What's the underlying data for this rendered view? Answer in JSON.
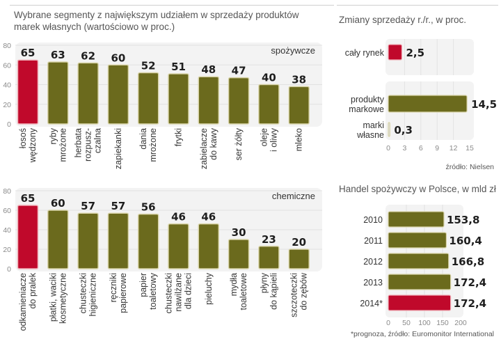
{
  "colors": {
    "highlight": "#c0092b",
    "bar": "#6b6a1d",
    "bar_border": "#d8d3a8",
    "panel": "#f3f3f3",
    "grid": "#e2e2e2"
  },
  "chart_data": [
    {
      "id": "food",
      "type": "bar",
      "title": "Wybrane segmenty z największym udziałem w sprzedaży produktów marek własnych (wartościowo w proc.)",
      "segment_label": "spożywcze",
      "categories": [
        "łosoś wędzony",
        "ryby mrożone",
        "herbata rozpuszczalna",
        "zapiekanki",
        "dania mrożone",
        "frytki",
        "zabielacze do kawy",
        "ser żółty",
        "oleje i oliwy",
        "mleko"
      ],
      "category_lines": [
        [
          "łosoś",
          "wędzony"
        ],
        [
          "ryby",
          "mrożone"
        ],
        [
          "herbata",
          "rozpusz-",
          "czalna"
        ],
        [
          "zapiekanki"
        ],
        [
          "dania",
          "mrożone"
        ],
        [
          "frytki"
        ],
        [
          "zabielacze",
          "do kawy"
        ],
        [
          "ser żółty"
        ],
        [
          "oleje",
          "i oliwy"
        ],
        [
          "mleko"
        ]
      ],
      "values": [
        65,
        63,
        62,
        60,
        52,
        51,
        48,
        47,
        40,
        38
      ],
      "value_labels": [
        "65",
        "63",
        "62",
        "60",
        "52",
        "51",
        "48",
        "47",
        "40",
        "38"
      ],
      "highlight_index": 0,
      "ylim": [
        0,
        80
      ],
      "yticks": [
        0,
        20,
        40,
        60,
        80
      ],
      "grid": true
    },
    {
      "id": "chem",
      "type": "bar",
      "segment_label": "chemiczne",
      "categories": [
        "odkamieniacze do pralek",
        "płatki, waciki kosmetyczne",
        "chusteczki higieniczne",
        "ręczniki papierowe",
        "papier toaletowy",
        "chusteczki nawilżane dla dzieci",
        "pieluchy",
        "mydła toaletowe",
        "płyny do kąpieli",
        "szczoteczki do zębów"
      ],
      "category_lines": [
        [
          "odkamieniacze",
          "do pralek"
        ],
        [
          "płatki, waciki",
          "kosmetyczne"
        ],
        [
          "chusteczki",
          "higieniczne"
        ],
        [
          "ręczniki",
          "papierowe"
        ],
        [
          "papier",
          "toaletowy"
        ],
        [
          "chusteczki",
          "nawilżane",
          "dla dzieci"
        ],
        [
          "pieluchy"
        ],
        [
          "mydła",
          "toaletowe"
        ],
        [
          "płyny",
          "do kąpieli"
        ],
        [
          "szczoteczki",
          "do zębów"
        ]
      ],
      "values": [
        65,
        60,
        57,
        57,
        56,
        46,
        46,
        30,
        23,
        20
      ],
      "value_labels": [
        "65",
        "60",
        "57",
        "57",
        "56",
        "46",
        "46",
        "30",
        "23",
        "20"
      ],
      "highlight_index": 0,
      "ylim": [
        0,
        80
      ],
      "yticks": [
        0,
        20,
        40,
        60,
        80
      ],
      "grid": true
    },
    {
      "id": "sales",
      "type": "bar",
      "orientation": "horizontal",
      "title": "Zmiany sprzedaży r./r., w proc.",
      "categories": [
        "cały rynek",
        "produkty markowe",
        "marki własne"
      ],
      "category_lines": [
        [
          "cały rynek"
        ],
        [
          "produkty",
          "markowe"
        ],
        [
          "marki",
          "własne"
        ]
      ],
      "values": [
        2.5,
        14.5,
        0.3
      ],
      "value_labels": [
        "2,5",
        "14,5",
        "0,3"
      ],
      "highlight_index": 0,
      "xlim": [
        0,
        15
      ],
      "xticks": [
        0,
        3,
        6,
        9,
        12,
        15
      ],
      "source": "źródło: Nielsen",
      "grid": true
    },
    {
      "id": "retail",
      "type": "bar",
      "orientation": "horizontal",
      "title": "Handel spożywczy w Polsce, w mld zł",
      "categories": [
        "2010",
        "2011",
        "2012",
        "2013",
        "2014*"
      ],
      "values": [
        153.8,
        160.4,
        166.8,
        172.4,
        172.4
      ],
      "value_labels": [
        "153,8",
        "160,4",
        "166,8",
        "172,4",
        "172,4"
      ],
      "highlight_index": 4,
      "xlim": [
        0,
        200
      ],
      "xticks": [
        0,
        50,
        100,
        150,
        200
      ],
      "source": "*prognoza, źródło: Euromonitor International",
      "grid": true
    }
  ]
}
